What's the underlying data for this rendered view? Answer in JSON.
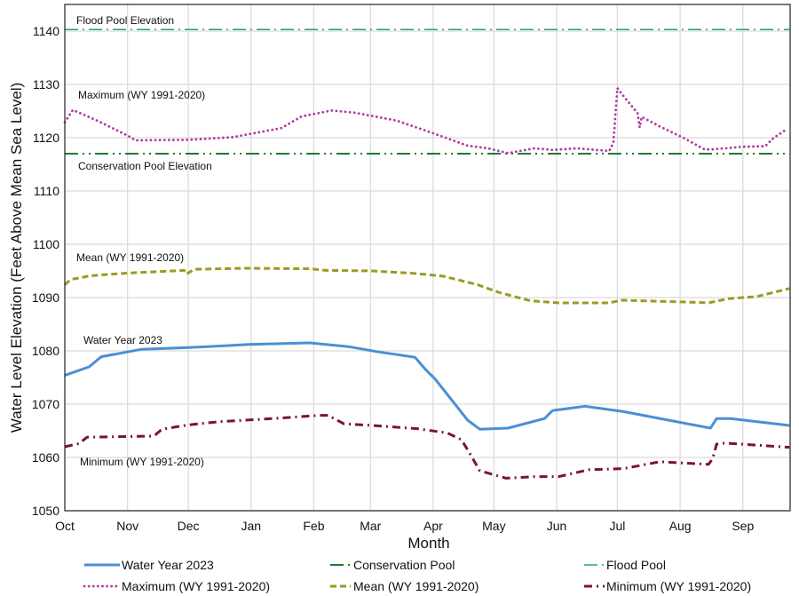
{
  "chart_data": {
    "type": "line",
    "xlabel": "Month",
    "ylabel": "Water Level  Elevation (Feet Above Mean Sea Level)",
    "xlim": [
      "2022-10-01",
      "2023-09-24"
    ],
    "ylim": [
      1050,
      1145
    ],
    "x_tick_labels": [
      "Oct",
      "Nov",
      "Dec",
      "Jan",
      "Feb",
      "Mar",
      "Apr",
      "May",
      "Jun",
      "Jul",
      "Aug",
      "Sep"
    ],
    "x_tick_dates": [
      "2022-10-01",
      "2022-11-01",
      "2022-12-01",
      "2023-01-01",
      "2023-02-01",
      "2023-03-01",
      "2023-04-01",
      "2023-05-01",
      "2023-06-01",
      "2023-07-01",
      "2023-08-01",
      "2023-09-01"
    ],
    "y_ticks": [
      1050,
      1060,
      1070,
      1080,
      1090,
      1100,
      1110,
      1120,
      1130,
      1140
    ],
    "grid": true,
    "legend_position": "bottom",
    "series": [
      {
        "name": "Water Year 2023",
        "color": "#4a90d4",
        "style": "solid",
        "annotation": "Water Year 2023",
        "points": [
          [
            "2022-10-01",
            1075.4
          ],
          [
            "2022-10-13",
            1077.0
          ],
          [
            "2022-10-19",
            1078.9
          ],
          [
            "2022-11-01",
            1079.8
          ],
          [
            "2022-11-08",
            1080.3
          ],
          [
            "2022-11-30",
            1080.6
          ],
          [
            "2022-12-16",
            1080.9
          ],
          [
            "2022-12-31",
            1081.2
          ],
          [
            "2023-01-30",
            1081.5
          ],
          [
            "2023-02-18",
            1080.8
          ],
          [
            "2023-03-05",
            1079.8
          ],
          [
            "2023-03-23",
            1078.8
          ],
          [
            "2023-03-28",
            1076.6
          ],
          [
            "2023-04-02",
            1074.7
          ],
          [
            "2023-04-18",
            1067.0
          ],
          [
            "2023-04-24",
            1065.3
          ],
          [
            "2023-05-08",
            1065.5
          ],
          [
            "2023-05-21",
            1066.8
          ],
          [
            "2023-05-26",
            1067.3
          ],
          [
            "2023-05-30",
            1068.8
          ],
          [
            "2023-06-15",
            1069.6
          ],
          [
            "2023-07-04",
            1068.6
          ],
          [
            "2023-08-16",
            1065.5
          ],
          [
            "2023-08-19",
            1067.3
          ],
          [
            "2023-08-26",
            1067.3
          ],
          [
            "2023-09-08",
            1066.7
          ],
          [
            "2023-09-24",
            1066.0
          ]
        ]
      },
      {
        "name": "Conservation Pool",
        "color": "#1e7a2c",
        "style": "dash-dot-dot",
        "annotation": "Conservation Pool Elevation",
        "points": [
          [
            "2022-10-01",
            1117.0
          ],
          [
            "2023-09-24",
            1117.0
          ]
        ]
      },
      {
        "name": "Flood Pool",
        "color": "#1fa487",
        "style": "dash-dot",
        "annotation": "Flood Pool Elevation",
        "points": [
          [
            "2022-10-01",
            1140.3
          ],
          [
            "2023-09-24",
            1140.3
          ]
        ]
      },
      {
        "name": "Maximum (WY 1991-2020)",
        "color": "#b03a9e",
        "style": "dotted",
        "annotation": "Maximum (WY 1991-2020)",
        "points": [
          [
            "2022-10-01",
            1122.9
          ],
          [
            "2022-10-05",
            1125.2
          ],
          [
            "2022-10-17",
            1123.2
          ],
          [
            "2022-11-01",
            1120.4
          ],
          [
            "2022-11-05",
            1119.5
          ],
          [
            "2022-12-01",
            1119.6
          ],
          [
            "2022-12-23",
            1120.1
          ],
          [
            "2023-01-16",
            1121.8
          ],
          [
            "2023-01-26",
            1124.0
          ],
          [
            "2023-02-10",
            1125.1
          ],
          [
            "2023-02-21",
            1124.7
          ],
          [
            "2023-03-14",
            1123.2
          ],
          [
            "2023-04-02",
            1120.7
          ],
          [
            "2023-04-18",
            1118.5
          ],
          [
            "2023-04-28",
            1118.0
          ],
          [
            "2023-05-08",
            1117.1
          ],
          [
            "2023-05-21",
            1118.0
          ],
          [
            "2023-05-30",
            1117.7
          ],
          [
            "2023-06-11",
            1118.0
          ],
          [
            "2023-06-27",
            1117.5
          ],
          [
            "2023-06-29",
            1119.0
          ],
          [
            "2023-07-01",
            1129.3
          ],
          [
            "2023-07-04",
            1127.8
          ],
          [
            "2023-07-11",
            1124.6
          ],
          [
            "2023-07-12",
            1121.9
          ],
          [
            "2023-07-13",
            1123.9
          ],
          [
            "2023-07-22",
            1122.1
          ],
          [
            "2023-08-03",
            1119.9
          ],
          [
            "2023-08-13",
            1117.8
          ],
          [
            "2023-08-17",
            1117.8
          ],
          [
            "2023-08-23",
            1118.0
          ],
          [
            "2023-09-01",
            1118.3
          ],
          [
            "2023-09-12",
            1118.4
          ],
          [
            "2023-09-16",
            1119.9
          ],
          [
            "2023-09-23",
            1121.7
          ]
        ]
      },
      {
        "name": "Mean (WY 1991-2020)",
        "color": "#9b9a22",
        "style": "dashed",
        "annotation": "Mean (WY 1991-2020)",
        "points": [
          [
            "2022-10-01",
            1092.4
          ],
          [
            "2022-10-04",
            1093.4
          ],
          [
            "2022-10-14",
            1094.1
          ],
          [
            "2022-11-01",
            1094.6
          ],
          [
            "2022-11-29",
            1095.1
          ],
          [
            "2022-11-30",
            1094.4
          ],
          [
            "2022-12-04",
            1095.3
          ],
          [
            "2022-12-29",
            1095.5
          ],
          [
            "2023-01-30",
            1095.4
          ],
          [
            "2023-02-07",
            1095.1
          ],
          [
            "2023-03-02",
            1095.0
          ],
          [
            "2023-03-24",
            1094.5
          ],
          [
            "2023-04-06",
            1094.0
          ],
          [
            "2023-04-23",
            1092.4
          ],
          [
            "2023-05-04",
            1090.9
          ],
          [
            "2023-05-19",
            1089.4
          ],
          [
            "2023-06-02",
            1089.0
          ],
          [
            "2023-06-27",
            1089.0
          ],
          [
            "2023-07-03",
            1089.5
          ],
          [
            "2023-08-10",
            1089.1
          ],
          [
            "2023-08-15",
            1089.0
          ],
          [
            "2023-08-25",
            1089.8
          ],
          [
            "2023-09-08",
            1090.2
          ],
          [
            "2023-09-24",
            1091.7
          ]
        ]
      },
      {
        "name": "Minimum (WY 1991-2020)",
        "color": "#7a1046",
        "style": "dash-dot",
        "annotation": "Minimum (WY 1991-2020)",
        "points": [
          [
            "2022-10-01",
            1062.0
          ],
          [
            "2022-10-08",
            1062.6
          ],
          [
            "2022-10-12",
            1063.8
          ],
          [
            "2022-11-14",
            1064.0
          ],
          [
            "2022-11-18",
            1065.3
          ],
          [
            "2022-12-01",
            1066.1
          ],
          [
            "2022-12-16",
            1066.7
          ],
          [
            "2023-01-12",
            1067.3
          ],
          [
            "2023-02-04",
            1067.9
          ],
          [
            "2023-02-08",
            1067.9
          ],
          [
            "2023-02-16",
            1066.3
          ],
          [
            "2023-03-02",
            1066.0
          ],
          [
            "2023-03-24",
            1065.4
          ],
          [
            "2023-04-08",
            1064.6
          ],
          [
            "2023-04-15",
            1063.3
          ],
          [
            "2023-04-19",
            1060.8
          ],
          [
            "2023-04-24",
            1057.5
          ],
          [
            "2023-05-07",
            1056.1
          ],
          [
            "2023-05-21",
            1056.4
          ],
          [
            "2023-06-02",
            1056.4
          ],
          [
            "2023-06-17",
            1057.7
          ],
          [
            "2023-07-04",
            1057.9
          ],
          [
            "2023-07-22",
            1059.2
          ],
          [
            "2023-08-15",
            1058.7
          ],
          [
            "2023-08-17",
            1059.7
          ],
          [
            "2023-08-19",
            1062.5
          ],
          [
            "2023-08-23",
            1062.7
          ],
          [
            "2023-09-24",
            1061.9
          ]
        ]
      }
    ]
  }
}
